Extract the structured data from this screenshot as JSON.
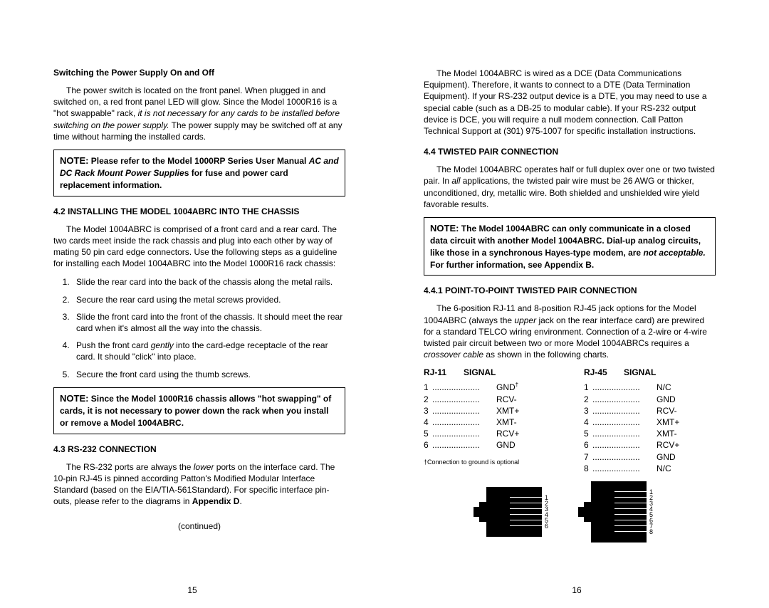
{
  "left": {
    "heading1": "Switching the Power Supply On and Off",
    "para1_a": "The power switch is located on the front panel.  When plugged in and switched on, a red front panel LED will glow.  Since the Model 1000R16 is a \"hot swappable\" rack, ",
    "para1_italic": "it is not necessary for any cards to be installed before switching on the power supply.",
    "para1_b": "  The power supply may be switched off at any time without harming the installed cards.",
    "note1_label": "NOTE:",
    "note1_a": "  Please refer to the Model 1000RP Series User Manual ",
    "note1_italic": "AC and DC Rack Mount Power Supplie",
    "note1_b": "s for fuse and power card replacement information.",
    "heading2": "4.2  INSTALLING THE MODEL 1004ABRC INTO THE CHASSIS",
    "para2": "The Model 1004ABRC is comprised of a front card and a rear card.  The two cards meet inside the rack chassis and plug into each other by way of mating 50 pin card edge connectors.  Use the following steps as a guideline for installing each Model 1004ABRC into the Model 1000R16 rack chassis:",
    "list": [
      "Slide the rear card into the back of the chassis along the metal rails.",
      "Secure the rear card using the metal screws provided.",
      "Slide the front card into the front of the chassis.  It should meet the rear card when it's almost all the way into the chassis.",
      "Push the front card <i>gently</i> into the card-edge receptacle of the rear card.  It should \"click\" into place.",
      "Secure the front card using the thumb screws."
    ],
    "note2_label": "NOTE:",
    "note2": "  Since the Model 1000R16 chassis allows \"hot swapping\" of cards, it is not necessary to power down the rack when you install or remove a Model 1004ABRC.",
    "heading3": "4.3  RS-232 CONNECTION",
    "para3_a": "The RS-232 ports are always the ",
    "para3_italic1": "lower",
    "para3_b": " ports on the interface card. The 10-pin RJ-45 is pinned according Patton's Modified Modular Interface Standard (based on the EIA/TIA-561Standard).  For specific interface pin-outs, please refer to the diagrams in ",
    "para3_bold": "Appendix D",
    "para3_c": ".",
    "continued": "(continued)",
    "page_num": "15"
  },
  "right": {
    "para1": "The Model 1004ABRC is wired as a DCE (Data Communications Equipment).  Therefore, it wants to connect to a DTE (Data Termination Equipment).  If your RS-232 output device is a DTE, you may need to use a special cable (such as a DB-25 to modular cable).  If your RS-232 output device is DCE, you will require a null modem connection.  Call Patton Technical Support at (301) 975-1007 for specific installation instructions.",
    "heading1": "4.4  TWISTED PAIR CONNECTION",
    "para2_a": "The Model 1004ABRC operates half or full duplex over one or two twisted pair.  In ",
    "para2_italic1": "all",
    "para2_b": " applications, the twisted pair wire must be 26 AWG or thicker, unconditioned, dry, metallic wire.  Both shielded and unshielded wire yield favorable results.",
    "note_label": "NOTE:",
    "note_a": "  The Model 1004ABRC can only communicate in a closed data circuit with another Model 1004ABRC.  Dial-up analog circuits, like those in a synchronous Hayes-type modem, are ",
    "note_italic": "not acceptable.",
    "note_b": "  For further information, see Appendix B.",
    "heading2": "4.4.1  POINT-TO-POINT TWISTED PAIR CONNECTION",
    "para3_a": "The 6-position RJ-11 and 8-position RJ-45 jack options for the Model 1004ABRC (always the ",
    "para3_italic": "upper",
    "para3_b": " jack on the rear interface card) are prewired for a standard TELCO wiring environment.  Connection of a  2-wire or 4-wire twisted pair circuit between two or more Model 1004ABRCs requires a ",
    "para3_italic2": "crossover cable",
    "para3_c": " as shown in the following charts.",
    "table1": {
      "header1": "RJ-11",
      "header2": "SIGNAL",
      "rows": [
        {
          "n": "1",
          "s": "GND"
        },
        {
          "n": "2",
          "s": "RCV-"
        },
        {
          "n": "3",
          "s": "XMT+"
        },
        {
          "n": "4",
          "s": "XMT-"
        },
        {
          "n": "5",
          "s": "RCV+"
        },
        {
          "n": "6",
          "s": "GND"
        }
      ]
    },
    "table2": {
      "header1": "RJ-45",
      "header2": "SIGNAL",
      "rows": [
        {
          "n": "1",
          "s": "N/C"
        },
        {
          "n": "2",
          "s": "GND"
        },
        {
          "n": "3",
          "s": "RCV-"
        },
        {
          "n": "4",
          "s": "XMT+"
        },
        {
          "n": "5",
          "s": "XMT-"
        },
        {
          "n": "6",
          "s": "RCV+"
        },
        {
          "n": "7",
          "s": "GND"
        },
        {
          "n": "8",
          "s": "N/C"
        }
      ]
    },
    "footnote": "†Connection to ground is optional",
    "page_num": "16"
  }
}
